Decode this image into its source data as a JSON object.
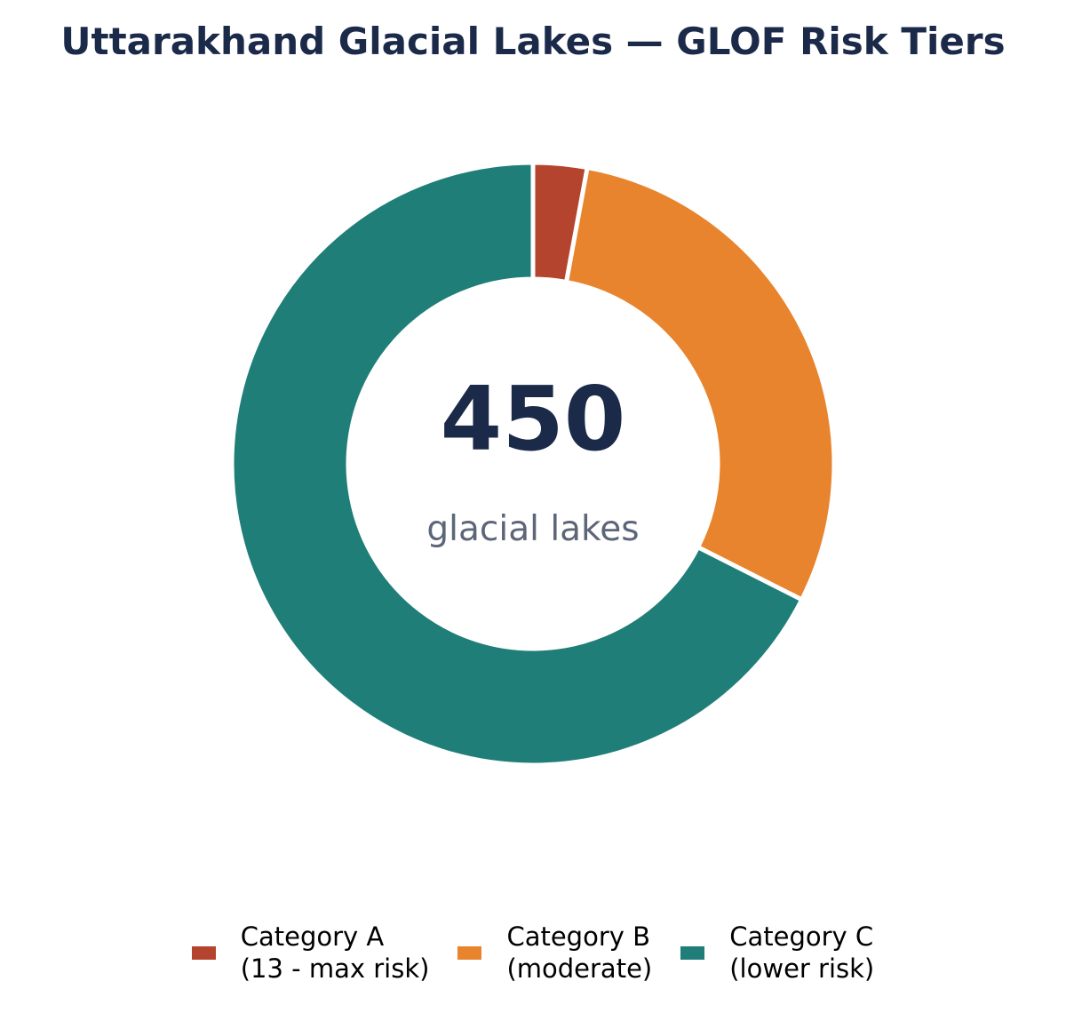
{
  "chart_data": {
    "type": "pie",
    "title": "Uttarakhand Glacial Lakes — GLOF Risk Tiers",
    "center_value": "450",
    "center_label": "glacial lakes",
    "total": 450,
    "slices": [
      {
        "name": "Category A",
        "detail": "(13 - max risk)",
        "value": 13,
        "color": "#b5442e"
      },
      {
        "name": "Category B",
        "detail": "(moderate)",
        "value": 133,
        "color": "#e8842d"
      },
      {
        "name": "Category C",
        "detail": "(lower risk)",
        "value": 304,
        "color": "#1f7e78"
      }
    ],
    "legend_position": "bottom"
  },
  "colors": {
    "title": "#1c2a4a",
    "center_value": "#1c2a4a",
    "center_label": "#5d6678"
  }
}
